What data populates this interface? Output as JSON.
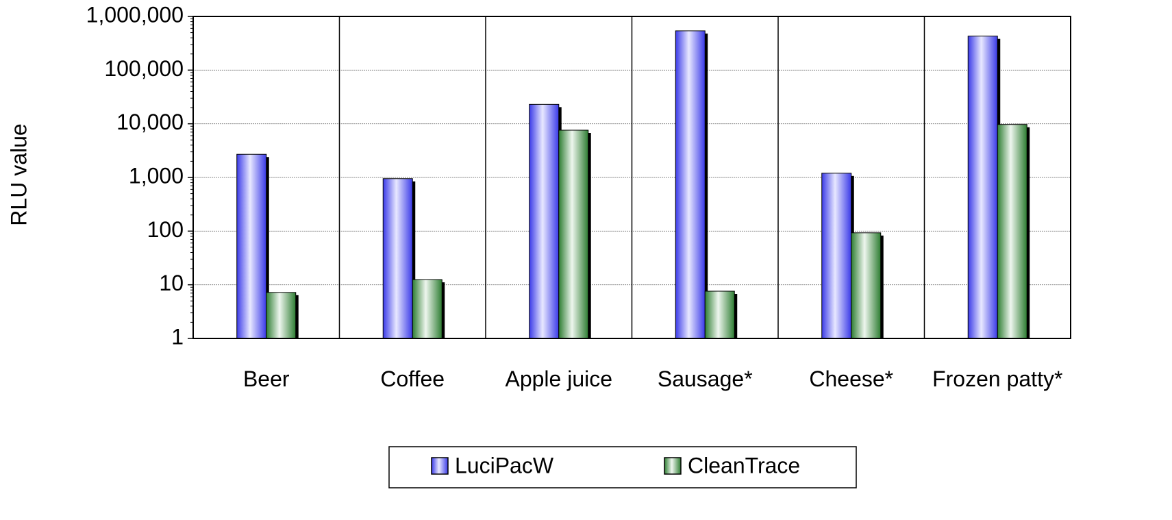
{
  "chart_data": {
    "type": "bar",
    "y_label": "RLU value",
    "log_scale": true,
    "grid": true,
    "categories": [
      "Beer",
      "Coffee",
      "Apple juice",
      "Sausage*",
      "Cheese*",
      "Frozen patty*"
    ],
    "series": [
      {
        "name": "LuciPacW",
        "color": "#3a3ae8",
        "values": [
          2700,
          950,
          23000,
          540000,
          1200,
          430000
        ]
      },
      {
        "name": "CleanTrace",
        "color": "#2e7d32",
        "values": [
          7.2,
          12.5,
          7600,
          7.6,
          93,
          9700
        ]
      }
    ],
    "ylim": [
      1,
      1000000
    ],
    "yticks": [
      1,
      10,
      100,
      {
        "value": 1000,
        "label": "1,000"
      },
      {
        "value": 10000,
        "label": "10,000"
      },
      {
        "value": 100000,
        "label": "100,000"
      },
      {
        "value": 1000000,
        "label": "1,000,000"
      }
    ],
    "legend": "bottom"
  }
}
